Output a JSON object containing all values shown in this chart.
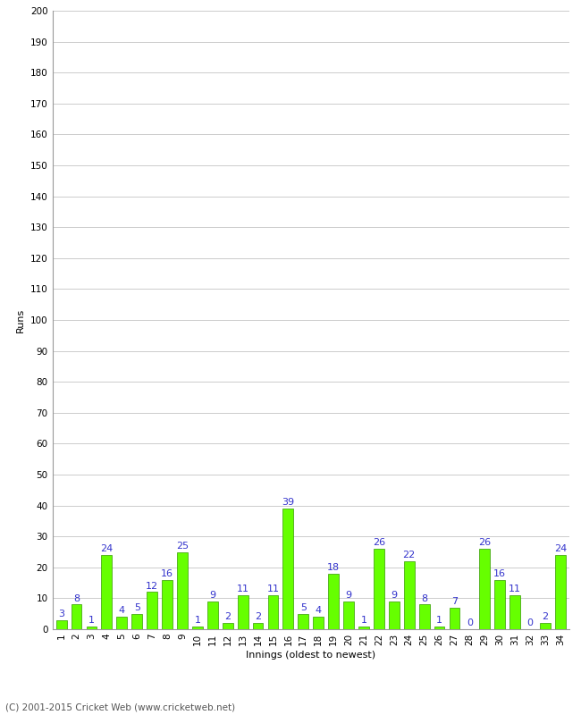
{
  "xlabel": "Innings (oldest to newest)",
  "ylabel": "Runs",
  "values": [
    3,
    8,
    1,
    24,
    4,
    5,
    12,
    16,
    25,
    1,
    9,
    2,
    11,
    2,
    11,
    39,
    5,
    4,
    18,
    9,
    1,
    26,
    9,
    22,
    8,
    1,
    7,
    0,
    26,
    16,
    11,
    0,
    2,
    24
  ],
  "categories": [
    "1",
    "2",
    "3",
    "4",
    "5",
    "6",
    "7",
    "8",
    "9",
    "10",
    "11",
    "12",
    "13",
    "14",
    "15",
    "16",
    "17",
    "18",
    "19",
    "20",
    "21",
    "22",
    "23",
    "24",
    "25",
    "26",
    "27",
    "28",
    "29",
    "30",
    "31",
    "32",
    "33",
    "34"
  ],
  "bar_color": "#66ff00",
  "bar_edge_color": "#339900",
  "label_color": "#3333cc",
  "ylim": [
    0,
    200
  ],
  "ytick_interval": 10,
  "background_color": "#ffffff",
  "grid_color": "#cccccc",
  "footnote": "(C) 2001-2015 Cricket Web (www.cricketweb.net)",
  "label_fontsize": 8,
  "tick_fontsize": 7.5,
  "footnote_fontsize": 7.5,
  "bar_width": 0.7
}
